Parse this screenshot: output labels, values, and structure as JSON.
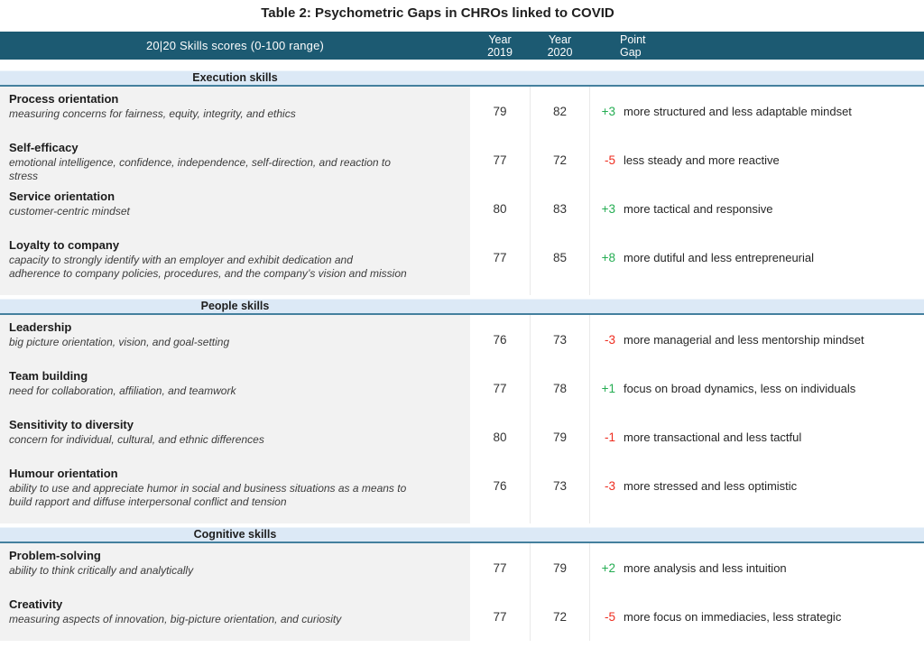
{
  "title": "Table 2: Psychometric Gaps in CHROs linked to COVID",
  "colors": {
    "header_teal": "#1c5a72",
    "section_band_blue": "#dce9f6",
    "section_band_border": "#44809e",
    "row_gray": "#f2f2f2",
    "positive_green": "#24ad52",
    "negative_red": "#ee2c1f"
  },
  "header": {
    "skills_label": "20|20 Skills scores (0-100 range)",
    "col_year_2019": "Year\n2019",
    "col_year_2020": "Year\n2020",
    "col_point_gap": "Point\nGap"
  },
  "sections": [
    {
      "label": "Execution skills",
      "rows": [
        {
          "name": "Process orientation",
          "desc": "measuring concerns for fairness, equity, integrity, and ethics",
          "y2019": "79",
          "y2020": "82",
          "gap": "+3",
          "note": "more structured and less adaptable mindset"
        },
        {
          "name": "Self-efficacy",
          "desc": "emotional intelligence, confidence, independence, self-direction, and reaction to\nstress",
          "y2019": "77",
          "y2020": "72",
          "gap": "-5",
          "note": "less steady and more reactive"
        },
        {
          "name": "Service orientation",
          "desc": "customer-centric mindset",
          "y2019": "80",
          "y2020": "83",
          "gap": "+3",
          "note": "more tactical and responsive"
        },
        {
          "name": "Loyalty to company",
          "desc": "capacity to strongly identify with an employer and exhibit dedication and\nadherence to company policies, procedures, and the company’s vision and mission",
          "y2019": "77",
          "y2020": "85",
          "gap": "+8",
          "note": "more dutiful and less entrepreneurial"
        }
      ]
    },
    {
      "label": "People skills",
      "rows": [
        {
          "name": "Leadership",
          "desc": "big picture orientation, vision, and goal-setting",
          "y2019": "76",
          "y2020": "73",
          "gap": "-3",
          "note": "more managerial and less mentorship mindset"
        },
        {
          "name": "Team building",
          "desc": "need for collaboration, affiliation, and teamwork",
          "y2019": "77",
          "y2020": "78",
          "gap": "+1",
          "note": "focus on broad dynamics, less on individuals"
        },
        {
          "name": "Sensitivity to diversity",
          "desc": "concern for individual, cultural, and ethnic differences",
          "y2019": "80",
          "y2020": "79",
          "gap": "-1",
          "note": "more transactional and less tactful"
        },
        {
          "name": "Humour orientation",
          "desc": "ability to use and appreciate humor in social and business situations as a means to\nbuild rapport and diffuse interpersonal conflict and tension",
          "y2019": "76",
          "y2020": "73",
          "gap": "-3",
          "note": "more stressed and less optimistic"
        }
      ]
    },
    {
      "label": "Cognitive skills",
      "rows": [
        {
          "name": "Problem-solving",
          "desc": "ability to think critically and analytically",
          "y2019": "77",
          "y2020": "79",
          "gap": "+2",
          "note": "more analysis and less intuition"
        },
        {
          "name": "Creativity",
          "desc": "measuring aspects of innovation, big-picture orientation, and curiosity",
          "y2019": "77",
          "y2020": "72",
          "gap": "-5",
          "note": "more focus on immediacies, less strategic"
        }
      ]
    }
  ]
}
